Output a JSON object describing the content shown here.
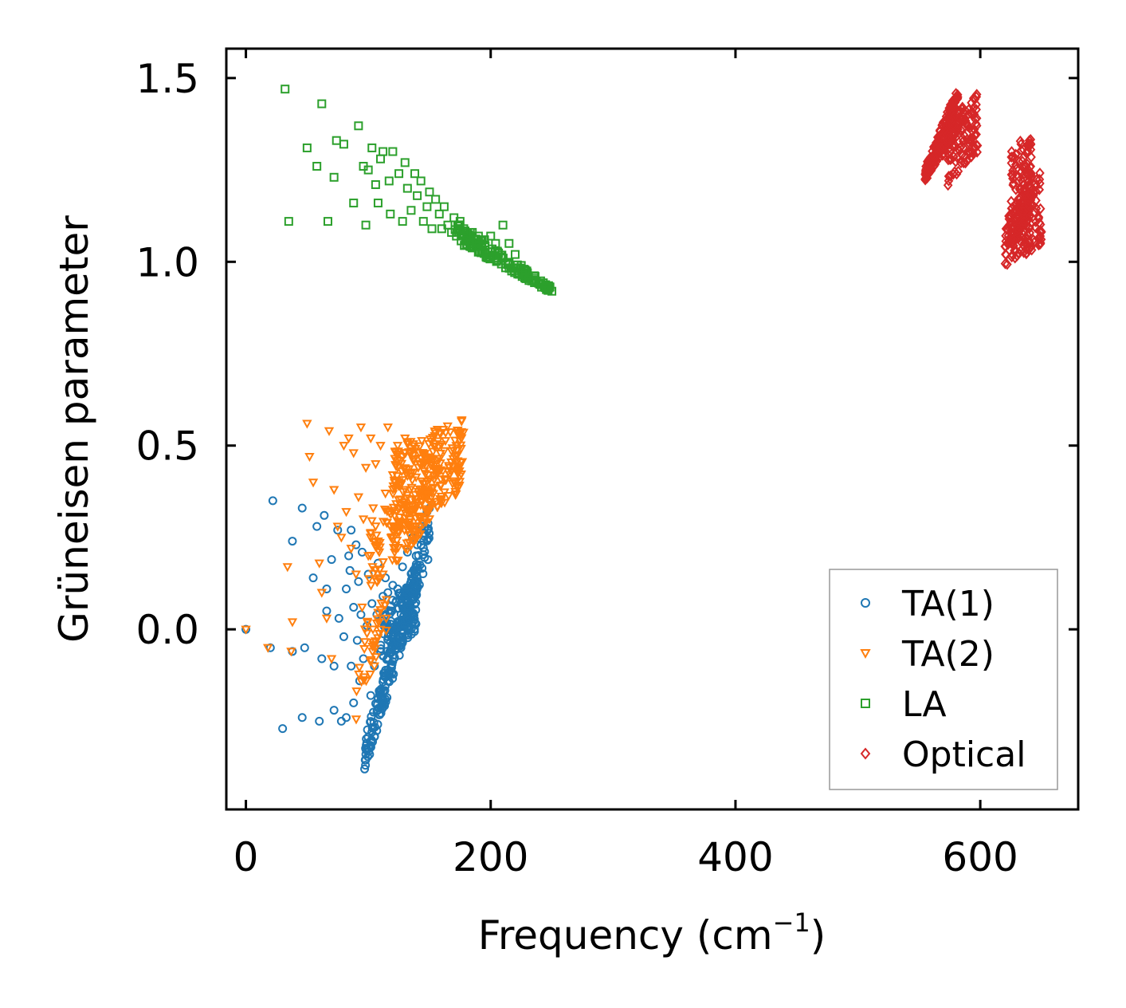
{
  "chart_data": {
    "type": "scatter",
    "title": "",
    "xlabel": "Frequency (cm",
    "xlabel_sup": "−1",
    "xlabel_close": ")",
    "ylabel": "Grüneisen parameter",
    "xlim": [
      -16,
      680
    ],
    "ylim": [
      -0.49,
      1.58
    ],
    "xticks": [
      0,
      200,
      400,
      600
    ],
    "xtick_labels": [
      "0",
      "200",
      "400",
      "600"
    ],
    "yticks": [
      0.0,
      0.5,
      1.0,
      1.5
    ],
    "ytick_labels": [
      "0.0",
      "0.5",
      "1.0",
      "1.5"
    ],
    "legend_position": "lower-right",
    "series": [
      {
        "name": "TA(1)",
        "marker": "circle",
        "color": "#1f77b4",
        "points": [
          [
            0,
            0
          ],
          [
            22,
            0.35
          ],
          [
            38,
            0.24
          ],
          [
            46,
            0.33
          ],
          [
            30,
            -0.27
          ],
          [
            20,
            -0.05
          ],
          [
            38,
            -0.06
          ],
          [
            48,
            -0.05
          ],
          [
            46,
            -0.24
          ],
          [
            55,
            0.14
          ],
          [
            58,
            0.28
          ],
          [
            60,
            -0.25
          ],
          [
            62,
            -0.08
          ],
          [
            64,
            0.31
          ],
          [
            66,
            0.11
          ],
          [
            66,
            0.05
          ],
          [
            70,
            0.19
          ],
          [
            72,
            -0.1
          ],
          [
            72,
            -0.22
          ],
          [
            75,
            0.27
          ],
          [
            76,
            0.03
          ],
          [
            78,
            -0.25
          ],
          [
            80,
            -0.02
          ],
          [
            82,
            0.11
          ],
          [
            82,
            -0.24
          ],
          [
            84,
            0.2
          ],
          [
            85,
            0.16
          ],
          [
            86,
            0.27
          ],
          [
            86,
            -0.1
          ],
          [
            88,
            0.06
          ],
          [
            88,
            -0.2
          ],
          [
            90,
            0.23
          ],
          [
            91,
            -0.03
          ],
          [
            92,
            0.13
          ],
          [
            93,
            -0.14
          ],
          [
            94,
            0.04
          ],
          [
            95,
            0.21
          ],
          [
            96,
            -0.08
          ],
          [
            97,
            -0.38
          ],
          [
            98,
            -0.34
          ],
          [
            99,
            0.01
          ],
          [
            100,
            0.15
          ],
          [
            102,
            -0.18
          ],
          [
            103,
            0.07
          ],
          [
            105,
            -0.1
          ],
          [
            107,
            0.04
          ],
          [
            108,
            0.18
          ],
          [
            110,
            -0.06
          ],
          [
            112,
            0.09
          ],
          [
            114,
            0.14
          ],
          [
            116,
            0.1
          ],
          [
            118,
            0.05
          ],
          [
            120,
            0.12
          ],
          [
            124,
            0.11
          ],
          [
            128,
            0.17
          ],
          [
            132,
            0.21
          ],
          [
            136,
            0.25
          ],
          [
            140,
            0.23
          ],
          [
            144,
            0.28
          ],
          [
            148,
            0.32
          ],
          [
            150,
            0.33
          ]
        ],
        "bands": [
          {
            "x": [
              97,
              150
            ],
            "ylo": [
              -0.39,
              0.2
            ],
            "yhi": [
              -0.3,
              0.33
            ],
            "n": 220
          },
          {
            "x": [
              110,
              140
            ],
            "ylo": [
              -0.1,
              0.0
            ],
            "yhi": [
              0.05,
              0.15
            ],
            "n": 120
          }
        ]
      },
      {
        "name": "TA(2)",
        "marker": "triangle-down",
        "color": "#ff7f0e",
        "points": [
          [
            0,
            0
          ],
          [
            18,
            -0.05
          ],
          [
            34,
            0.17
          ],
          [
            37,
            -0.06
          ],
          [
            38,
            0.02
          ],
          [
            50,
            0.56
          ],
          [
            52,
            0.47
          ],
          [
            55,
            0.4
          ],
          [
            60,
            0.18
          ],
          [
            62,
            0.1
          ],
          [
            66,
            0.03
          ],
          [
            68,
            0.54
          ],
          [
            70,
            -0.08
          ],
          [
            72,
            0.38
          ],
          [
            75,
            0.28
          ],
          [
            78,
            0.25
          ],
          [
            80,
            0.5
          ],
          [
            82,
            0.32
          ],
          [
            84,
            0.52
          ],
          [
            86,
            0.22
          ],
          [
            88,
            0.48
          ],
          [
            90,
            0.15
          ],
          [
            92,
            0.36
          ],
          [
            94,
            0.55
          ],
          [
            95,
            0.06
          ],
          [
            96,
            0.3
          ],
          [
            98,
            0.44
          ],
          [
            100,
            0.2
          ],
          [
            102,
            0.52
          ],
          [
            104,
            0.33
          ],
          [
            105,
            -0.1
          ],
          [
            106,
            0.45
          ],
          [
            108,
            0.24
          ],
          [
            110,
            0.5
          ],
          [
            112,
            0.15
          ],
          [
            114,
            0.37
          ],
          [
            116,
            0.55
          ],
          [
            118,
            0.28
          ],
          [
            120,
            0.42
          ],
          [
            122,
            0.22
          ],
          [
            124,
            0.5
          ],
          [
            126,
            0.34
          ],
          [
            128,
            0.47
          ],
          [
            130,
            0.52
          ]
        ],
        "bands": [
          {
            "x": [
              120,
              178
            ],
            "ylo": [
              0.25,
              0.38
            ],
            "yhi": [
              0.5,
              0.58
            ],
            "n": 260
          },
          {
            "x": [
              100,
              150
            ],
            "ylo": [
              0.1,
              0.28
            ],
            "yhi": [
              0.3,
              0.4
            ],
            "n": 110
          },
          {
            "x": [
              90,
              115
            ],
            "ylo": [
              -0.25,
              0.0
            ],
            "yhi": [
              0.0,
              0.1
            ],
            "n": 40
          }
        ]
      },
      {
        "name": "LA",
        "marker": "square",
        "color": "#2ca02c",
        "points": [
          [
            32,
            1.47
          ],
          [
            35,
            1.11
          ],
          [
            62,
            1.43
          ],
          [
            50,
            1.31
          ],
          [
            58,
            1.26
          ],
          [
            67,
            1.11
          ],
          [
            72,
            1.23
          ],
          [
            74,
            1.33
          ],
          [
            80,
            1.32
          ],
          [
            88,
            1.16
          ],
          [
            92,
            1.37
          ],
          [
            96,
            1.26
          ],
          [
            98,
            1.1
          ],
          [
            100,
            1.25
          ],
          [
            103,
            1.31
          ],
          [
            106,
            1.21
          ],
          [
            108,
            1.16
          ],
          [
            110,
            1.28
          ],
          [
            112,
            1.3
          ],
          [
            117,
            1.22
          ],
          [
            118,
            1.13
          ],
          [
            120,
            1.3
          ],
          [
            125,
            1.24
          ],
          [
            128,
            1.11
          ],
          [
            130,
            1.27
          ],
          [
            132,
            1.2
          ],
          [
            135,
            1.14
          ],
          [
            138,
            1.24
          ],
          [
            140,
            1.18
          ],
          [
            143,
            1.22
          ],
          [
            145,
            1.11
          ],
          [
            148,
            1.15
          ],
          [
            150,
            1.19
          ],
          [
            152,
            1.09
          ],
          [
            155,
            1.17
          ],
          [
            158,
            1.13
          ],
          [
            160,
            1.09
          ],
          [
            162,
            1.15
          ],
          [
            165,
            1.1
          ],
          [
            168,
            1.08
          ],
          [
            170,
            1.12
          ],
          [
            172,
            1.07
          ],
          [
            175,
            1.11
          ],
          [
            178,
            1.09
          ],
          [
            180,
            1.06
          ],
          [
            185,
            1.08
          ],
          [
            190,
            1.07
          ],
          [
            195,
            1.06
          ],
          [
            200,
            1.07
          ],
          [
            204,
            1.05
          ],
          [
            210,
            1.1
          ],
          [
            215,
            1.05
          ],
          [
            220,
            1.02
          ],
          [
            225,
            0.99
          ],
          [
            230,
            0.97
          ],
          [
            235,
            0.95
          ],
          [
            240,
            0.94
          ],
          [
            245,
            0.93
          ],
          [
            250,
            0.92
          ]
        ],
        "bands": [
          {
            "x": [
              170,
              250
            ],
            "ylo": [
              1.06,
              0.915
            ],
            "yhi": [
              1.11,
              0.93
            ],
            "n": 140
          }
        ]
      },
      {
        "name": "Optical",
        "marker": "diamond",
        "color": "#d62728",
        "points": [],
        "bands": [
          {
            "x": [
              555,
              582
            ],
            "ylo": [
              1.22,
              1.35
            ],
            "yhi": [
              1.26,
              1.48
            ],
            "n": 200
          },
          {
            "x": [
              572,
              598
            ],
            "ylo": [
              1.2,
              1.3
            ],
            "yhi": [
              1.38,
              1.46
            ],
            "n": 120
          },
          {
            "x": [
              625,
              642
            ],
            "ylo": [
              1.0,
              1.12
            ],
            "yhi": [
              1.33,
              1.34
            ],
            "n": 110
          },
          {
            "x": [
              620,
              650
            ],
            "ylo": [
              0.98,
              1.05
            ],
            "yhi": [
              1.12,
              1.26
            ],
            "n": 160
          }
        ]
      }
    ]
  }
}
